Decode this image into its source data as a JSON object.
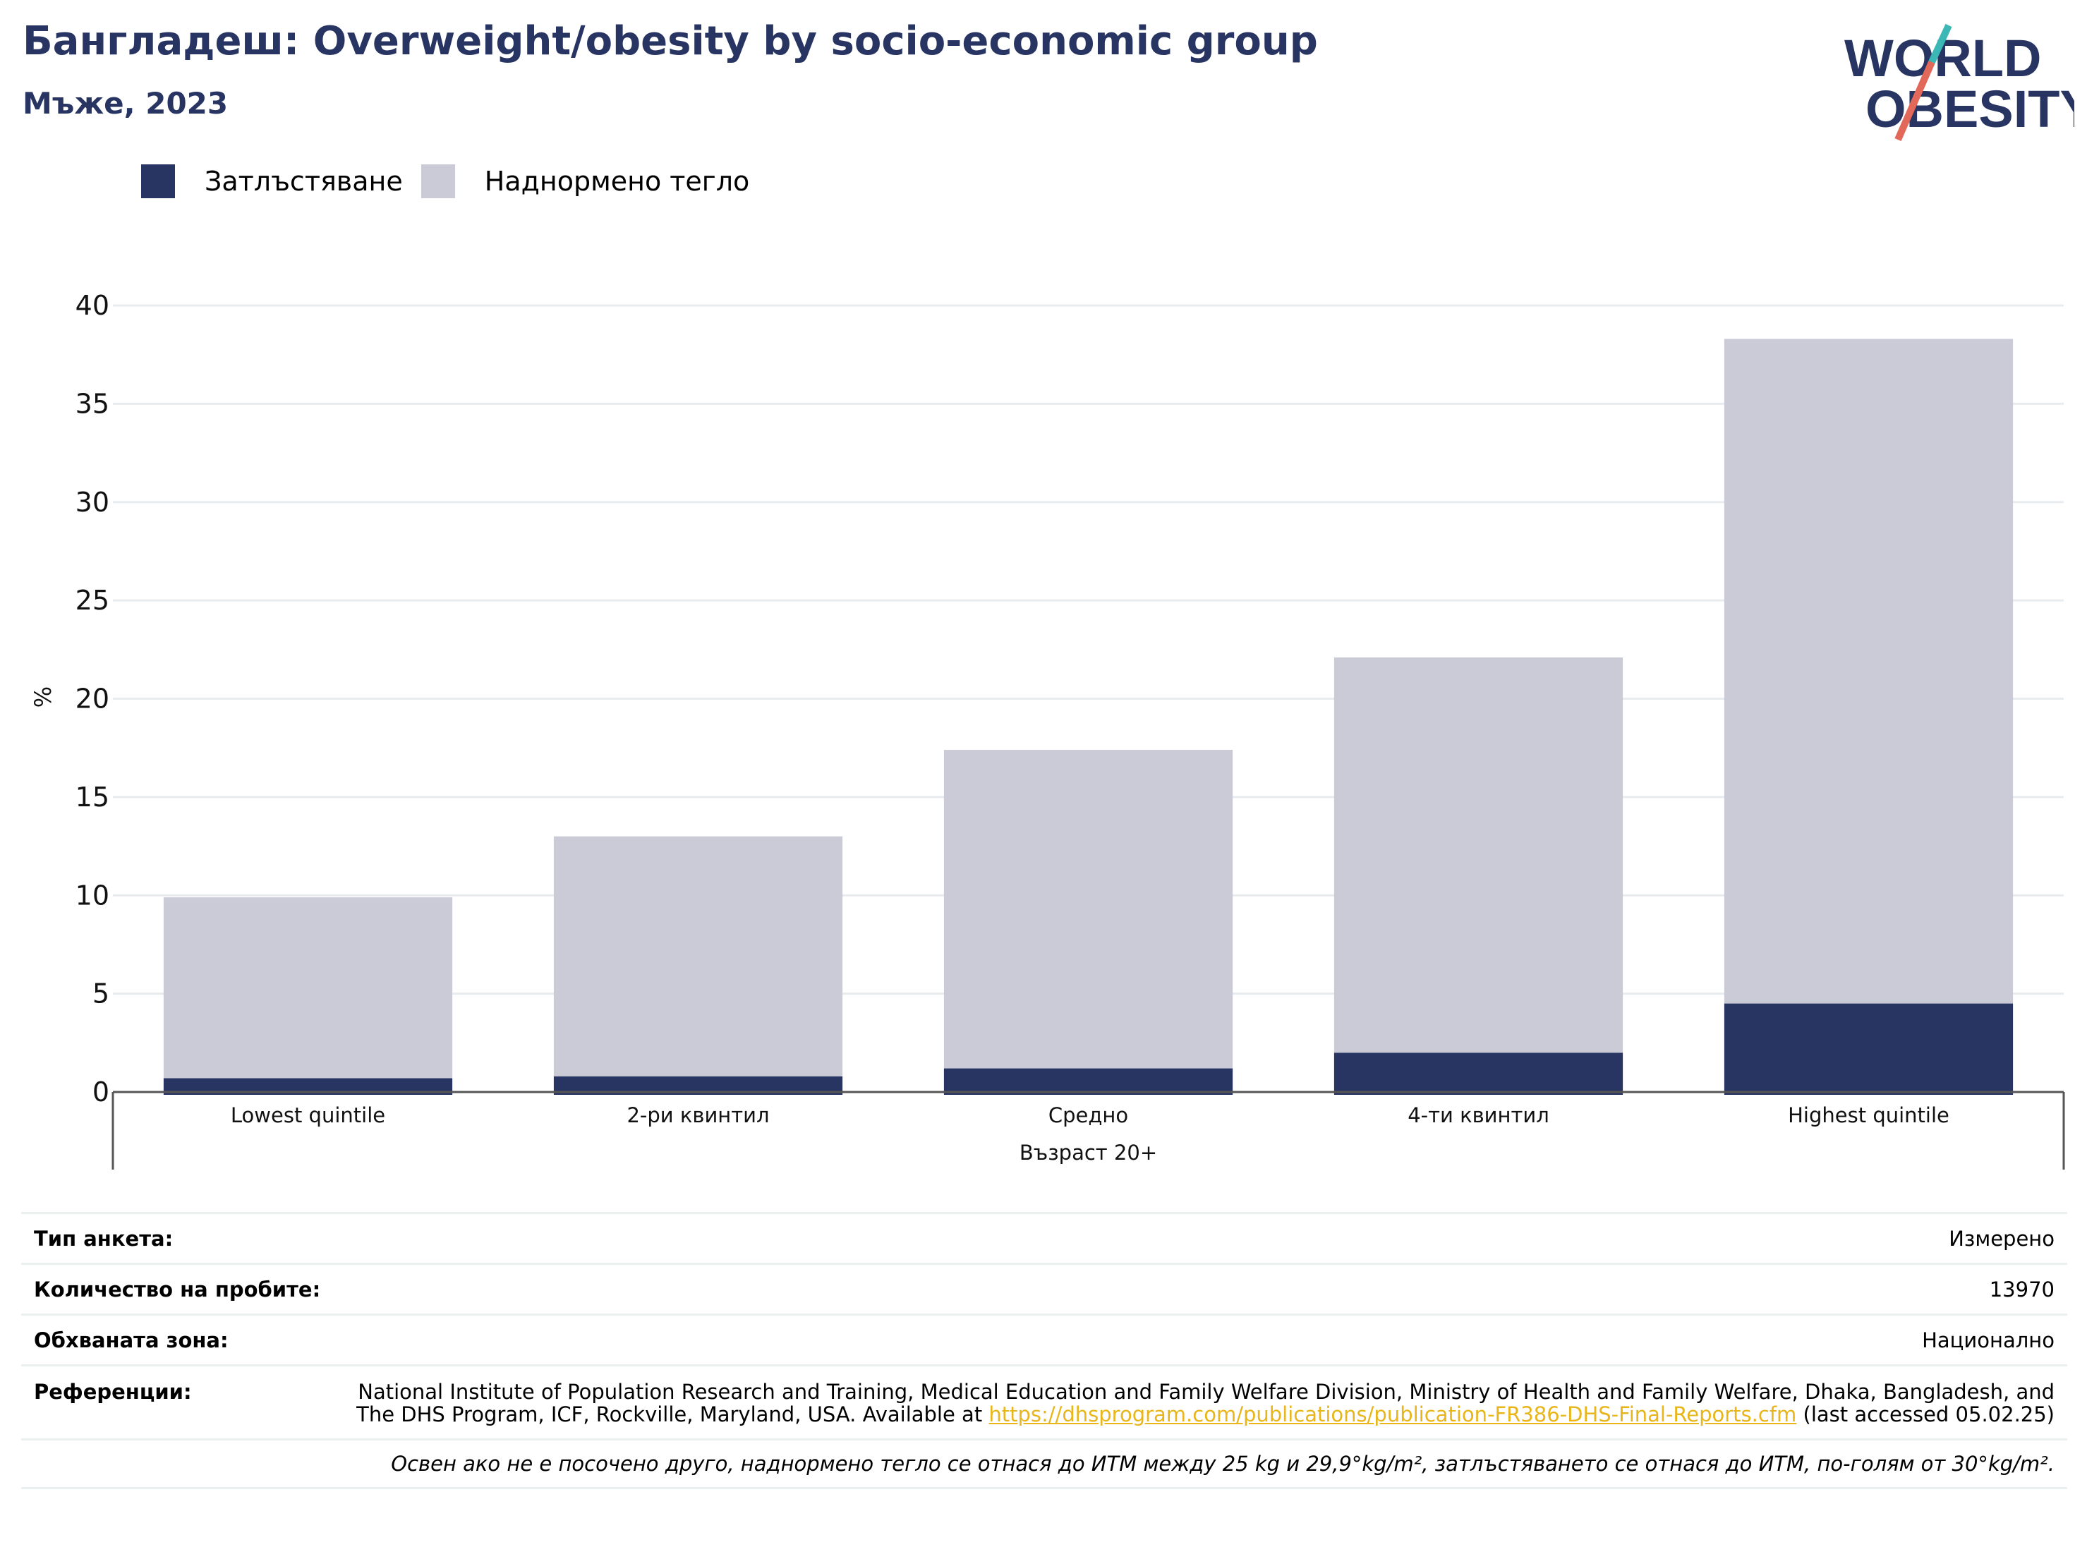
{
  "header": {
    "title": "Бангладеш: Overweight/obesity by socio-economic group",
    "subtitle": "Мъже, 2023"
  },
  "logo": {
    "line1": "WORLD",
    "line2": "OBESITY",
    "colors": {
      "navy": "#283562",
      "teal": "#3bb7b5",
      "coral": "#e2685a"
    }
  },
  "legend": [
    {
      "label": "Затлъстяване",
      "color": "#283562"
    },
    {
      "label": "Наднормено тегло",
      "color": "#cacbd7"
    }
  ],
  "chart_data": {
    "type": "bar",
    "stacked": true,
    "categories": [
      "Lowest quintile",
      "2-ри квинтил",
      "Средно",
      "4-ти квинтил",
      "Highest quintile"
    ],
    "group_label": "Възраст 20+",
    "series": [
      {
        "name": "Затлъстяване",
        "color": "#283562",
        "values": [
          0.7,
          0.8,
          1.2,
          2.0,
          4.5
        ]
      },
      {
        "name": "Наднормено тегло",
        "color": "#cacbd7",
        "values": [
          9.2,
          12.2,
          16.2,
          20.1,
          33.8
        ]
      }
    ],
    "ylabel": "%",
    "ylim": [
      0,
      40
    ],
    "yticks": [
      0,
      5,
      10,
      15,
      20,
      25,
      30,
      35,
      40
    ],
    "grid": true
  },
  "info": {
    "survey_type": {
      "label": "Тип анкета:",
      "value": "Измерено"
    },
    "sample_size": {
      "label": "Количество на пробите:",
      "value": "13970"
    },
    "area": {
      "label": "Обхваната зона:",
      "value": "Национално"
    },
    "references": {
      "label": "Референции:",
      "text": "National Institute of Population Research and Training, Medical Education and Family Welfare Division, Ministry of Health and Family Welfare, Dhaka, Bangladesh, and The DHS Program, ICF, Rockville, Maryland, USA. Available at ",
      "link": "https://dhsprogram.com/publications/publication-FR386-DHS-Final-Reports.cfm",
      "suffix": " (last accessed 05.02.25)"
    },
    "note": "Освен ако не е посочено друго, наднормено тегло се отнася до ИТМ между 25 kg и 29,9°kg/m², затлъстяването се отнася до ИТМ, по-голям от 30°kg/m²."
  }
}
